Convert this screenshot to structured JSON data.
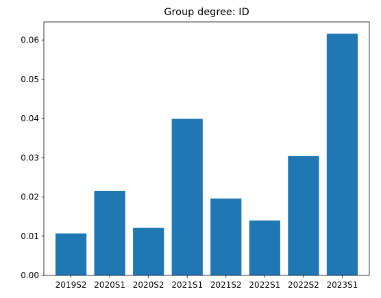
{
  "chart_data": {
    "type": "bar",
    "title": "Group degree: ID",
    "xlabel": "",
    "ylabel": "",
    "categories": [
      "2019S2",
      "2020S1",
      "2020S2",
      "2021S1",
      "2021S2",
      "2022S1",
      "2022S2",
      "2023S1"
    ],
    "values": [
      0.0107,
      0.0215,
      0.0121,
      0.0399,
      0.0196,
      0.014,
      0.0304,
      0.0616
    ],
    "ylim": [
      0,
      0.0646
    ],
    "yticks": [
      0.0,
      0.01,
      0.02,
      0.03,
      0.04,
      0.05,
      0.06
    ],
    "ytick_labels": [
      "0.00",
      "0.01",
      "0.02",
      "0.03",
      "0.04",
      "0.05",
      "0.06"
    ],
    "grid": false,
    "bar_color": "#1f77b4"
  }
}
